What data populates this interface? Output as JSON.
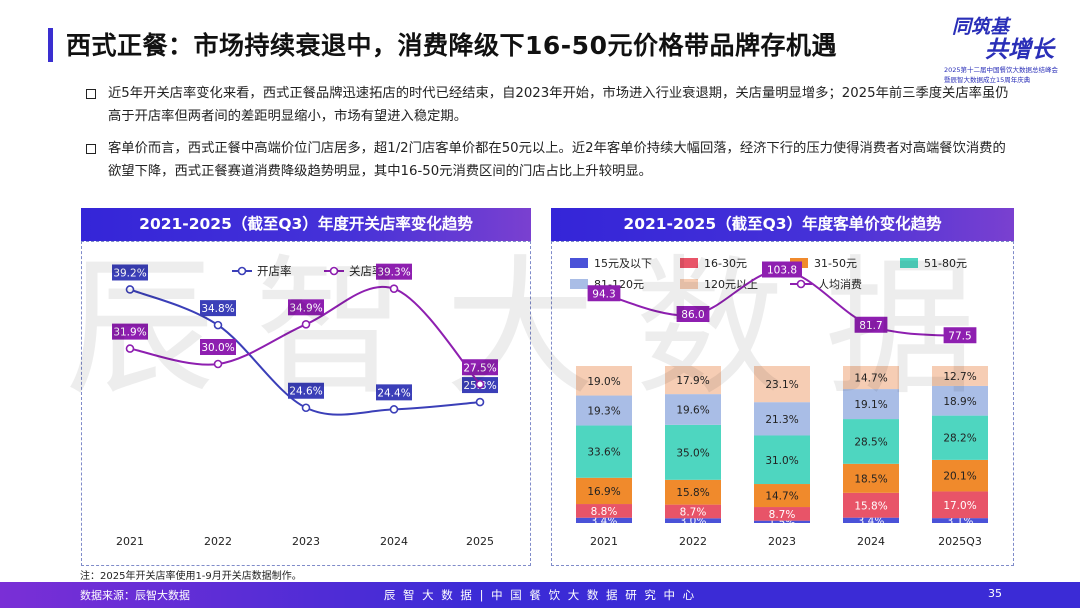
{
  "header": {
    "title": "西式正餐：市场持续衰退中，消费降级下16-50元价格带品牌存机遇",
    "logo_line1": "同筑基",
    "logo_line2": "共增长",
    "logo_sub1": "2025第十二届中国餐饮大数据总结峰会",
    "logo_sub2": "暨辰智大数据成立15周年庆典"
  },
  "bullets": [
    "近5年开关店率变化来看，西式正餐品牌迅速拓店的时代已经结束，自2023年开始，市场进入行业衰退期，关店量明显增多；2025年前三季度关店率虽仍高于开店率但两者间的差距明显缩小，市场有望进入稳定期。",
    "客单价而言，西式正餐中高端价位门店居多，超1/2门店客单价都在50元以上。近2年客单价持续大幅回落，经济下行的压力使得消费者对高端餐饮消费的欲望下降，西式正餐赛道消费降级趋势明显，其中16-50元消费区间的门店占比上升较明显。"
  ],
  "watermark": "辰智大数据",
  "footnote": "注：2025年开关店率使用1-9月开关店数据制作。",
  "footer": {
    "source": "数据来源：辰智大数据",
    "center": "辰 智 大 数 据  |  中 国 餐 饮 大 数 据 研 究 中 心",
    "page": "35"
  },
  "colors": {
    "accent": "#3a2fd0",
    "open_line": "#3b3fb8",
    "close_line": "#8e1fb0",
    "avg_line": "#8e1fb0",
    "seg1": "#4a52d8",
    "seg2": "#e85468",
    "seg3": "#f08a2c",
    "seg4": "#4ed6c0",
    "seg5": "#a9bde6",
    "seg6": "#f6cdb4"
  },
  "chart_data": [
    {
      "type": "line",
      "title": "2021-2025（截至Q3）年度开关店率变化趋势",
      "x": [
        "2021",
        "2022",
        "2023",
        "2024",
        "2025"
      ],
      "series": [
        {
          "name": "开店率",
          "values": [
            39.2,
            34.8,
            24.6,
            24.4,
            25.3
          ],
          "labels": [
            "39.2%",
            "34.8%",
            "24.6%",
            "24.4%",
            "25.3%"
          ]
        },
        {
          "name": "关店率",
          "values": [
            31.9,
            30.0,
            34.9,
            39.3,
            27.5
          ],
          "labels": [
            "31.9%",
            "30.0%",
            "34.9%",
            "39.3%",
            "27.5%"
          ]
        }
      ],
      "legend": "top"
    },
    {
      "type": "bar",
      "stacked": true,
      "title": "2021-2025（截至Q3）年度客单价变化趋势",
      "categories": [
        "2021",
        "2022",
        "2023",
        "2024",
        "2025Q3"
      ],
      "series": [
        {
          "name": "15元及以下",
          "values": [
            3.4,
            3.0,
            1.5,
            3.4,
            3.1
          ],
          "labels": [
            "3.4%",
            "3.0%",
            "1.5%",
            "3.4%",
            "3.1%"
          ]
        },
        {
          "name": "16-30元",
          "values": [
            8.8,
            8.7,
            8.7,
            15.8,
            17.0
          ],
          "labels": [
            "8.8%",
            "8.7%",
            "8.7%",
            "15.8%",
            "17.0%"
          ]
        },
        {
          "name": "31-50元",
          "values": [
            16.9,
            15.8,
            14.7,
            18.5,
            20.1
          ],
          "labels": [
            "16.9%",
            "15.8%",
            "14.7%",
            "18.5%",
            "20.1%"
          ]
        },
        {
          "name": "51-80元",
          "values": [
            33.6,
            35.0,
            31.0,
            28.5,
            28.2
          ],
          "labels": [
            "33.6%",
            "35.0%",
            "31.0%",
            "28.5%",
            "28.2%"
          ]
        },
        {
          "name": "81-120元",
          "values": [
            19.3,
            19.6,
            21.3,
            19.1,
            18.9
          ],
          "labels": [
            "19.3%",
            "19.6%",
            "21.3%",
            "19.1%",
            "18.9%"
          ]
        },
        {
          "name": "120元以上",
          "values": [
            19.0,
            17.9,
            23.1,
            14.7,
            12.7
          ],
          "labels": [
            "19.0%",
            "17.9%",
            "23.1%",
            "14.7%",
            "12.7%"
          ]
        }
      ],
      "line_series": {
        "name": "人均消费",
        "values": [
          94.3,
          86.0,
          103.8,
          81.7,
          77.5
        ],
        "labels": [
          "94.3",
          "86.0",
          "103.8",
          "81.7",
          "77.5"
        ]
      },
      "ylim": [
        0,
        100
      ],
      "legend": "top"
    }
  ]
}
